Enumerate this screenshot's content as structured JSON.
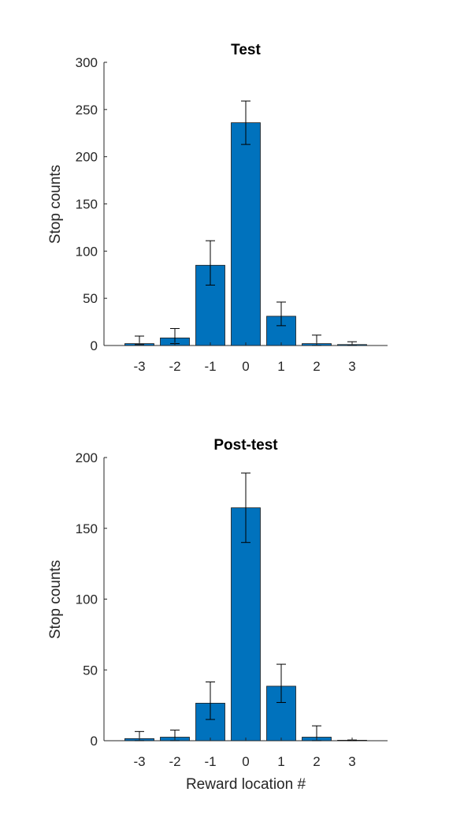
{
  "chart_data": [
    {
      "type": "bar",
      "title": "Test",
      "xlabel": "",
      "ylabel": "Stop counts",
      "categories": [
        "-3",
        "-2",
        "-1",
        "0",
        "1",
        "2",
        "3"
      ],
      "values": [
        2,
        8,
        85,
        236,
        31,
        2,
        1
      ],
      "error_low": [
        1,
        2,
        64,
        213,
        21,
        0,
        0
      ],
      "error_high": [
        10,
        18,
        111,
        259,
        46,
        11,
        4
      ],
      "ylim": [
        0,
        300
      ],
      "yticks": [
        "0",
        "50",
        "100",
        "150",
        "200",
        "250",
        "300"
      ],
      "bar_color": "#0072BD",
      "grid": false
    },
    {
      "type": "bar",
      "title": "Post-test",
      "xlabel": "Reward location #",
      "ylabel": "Stop counts",
      "categories": [
        "-3",
        "-2",
        "-1",
        "0",
        "1",
        "2",
        "3"
      ],
      "values": [
        1.5,
        2.5,
        26.5,
        164.5,
        38.5,
        2.5,
        0
      ],
      "error_low": [
        0,
        0,
        15,
        140,
        27,
        0,
        0
      ],
      "error_high": [
        6.5,
        7.5,
        41.5,
        189,
        54,
        10.5,
        0.5
      ],
      "ylim": [
        0,
        200
      ],
      "yticks": [
        "0",
        "50",
        "100",
        "150",
        "200"
      ],
      "bar_color": "#0072BD",
      "grid": false
    }
  ]
}
